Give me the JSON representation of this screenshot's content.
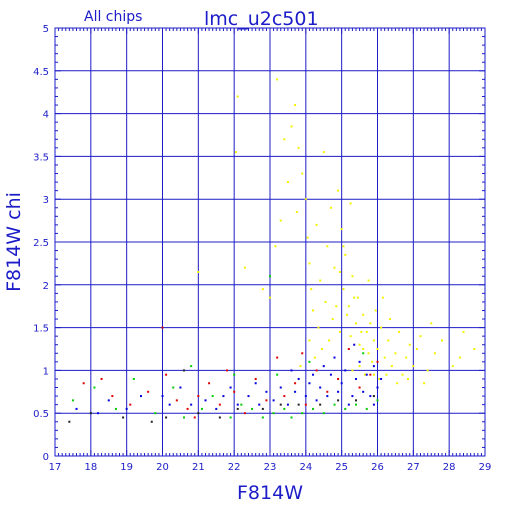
{
  "chart_data": {
    "type": "scatter",
    "title": "lmc_u2c501",
    "subtitle": "All chips",
    "xlabel": "F814W",
    "ylabel": "F814W chi",
    "xlim": [
      17,
      29
    ],
    "ylim": [
      0,
      5
    ],
    "grid": true,
    "x_ticks": [
      "17",
      "18",
      "19",
      "20",
      "21",
      "22",
      "23",
      "24",
      "25",
      "26",
      "27",
      "28",
      "29"
    ],
    "y_ticks": [
      "0",
      "0.5",
      "1",
      "1.5",
      "2",
      "2.5",
      "3",
      "3.5",
      "4",
      "4.5",
      "5"
    ],
    "colors": {
      "axis": "#1c1cc8",
      "grid": "#1c1cc8",
      "yellow": "#f2f200",
      "red": "#e00000",
      "green": "#00d000",
      "blue": "#0000e0",
      "black": "#202020"
    },
    "series": [
      {
        "color": "yellow",
        "points": [
          [
            21.0,
            2.15
          ],
          [
            22.05,
            3.55
          ],
          [
            22.1,
            4.2
          ],
          [
            22.3,
            2.2
          ],
          [
            23.0,
            1.85
          ],
          [
            23.2,
            4.4
          ],
          [
            23.4,
            3.7
          ],
          [
            23.5,
            3.2
          ],
          [
            23.6,
            3.85
          ],
          [
            23.7,
            4.1
          ],
          [
            23.75,
            2.85
          ],
          [
            23.8,
            3.6
          ],
          [
            23.9,
            3.3
          ],
          [
            24.0,
            3.0
          ],
          [
            24.05,
            2.55
          ],
          [
            24.1,
            2.25
          ],
          [
            24.15,
            1.95
          ],
          [
            24.2,
            1.7
          ],
          [
            24.3,
            2.7
          ],
          [
            24.35,
            1.5
          ],
          [
            24.4,
            2.05
          ],
          [
            24.5,
            3.55
          ],
          [
            24.55,
            1.8
          ],
          [
            24.6,
            2.45
          ],
          [
            24.7,
            2.9
          ],
          [
            24.75,
            1.6
          ],
          [
            24.8,
            2.2
          ],
          [
            24.9,
            3.1
          ],
          [
            24.95,
            1.45
          ],
          [
            25.0,
            2.65
          ],
          [
            25.05,
            1.95
          ],
          [
            25.1,
            2.35
          ],
          [
            25.2,
            1.75
          ],
          [
            25.25,
            1.4
          ],
          [
            25.3,
            2.1
          ],
          [
            25.4,
            1.55
          ],
          [
            25.45,
            1.85
          ],
          [
            25.5,
            1.3
          ],
          [
            25.6,
            1.65
          ],
          [
            25.7,
            1.45
          ],
          [
            25.75,
            1.2
          ],
          [
            25.8,
            1.55
          ],
          [
            25.9,
            1.35
          ],
          [
            26.0,
            1.25
          ],
          [
            26.1,
            1.5
          ],
          [
            26.2,
            1.15
          ],
          [
            26.3,
            1.35
          ],
          [
            26.4,
            1.05
          ],
          [
            26.5,
            1.2
          ],
          [
            26.6,
            1.45
          ],
          [
            26.7,
            0.95
          ],
          [
            26.8,
            1.15
          ],
          [
            26.9,
            1.3
          ],
          [
            27.0,
            1.05
          ],
          [
            27.1,
            1.25
          ],
          [
            27.2,
            1.4
          ],
          [
            27.4,
            1.0
          ],
          [
            27.6,
            1.2
          ],
          [
            27.8,
            1.35
          ],
          [
            28.1,
            1.05
          ],
          [
            28.4,
            1.45
          ],
          [
            28.7,
            1.25
          ],
          [
            25.3,
            1.0
          ],
          [
            25.5,
            1.05
          ],
          [
            25.65,
            0.95
          ],
          [
            25.85,
            1.1
          ],
          [
            26.05,
            0.9
          ],
          [
            26.25,
            0.95
          ],
          [
            25.15,
            1.65
          ],
          [
            24.85,
            1.75
          ],
          [
            24.65,
            1.35
          ],
          [
            25.35,
            1.85
          ],
          [
            25.55,
            1.45
          ],
          [
            25.95,
            1.7
          ],
          [
            26.15,
            1.85
          ],
          [
            24.45,
            1.25
          ],
          [
            24.25,
            1.15
          ],
          [
            23.85,
            1.05
          ],
          [
            25.75,
            2.05
          ],
          [
            25.05,
            2.45
          ],
          [
            24.95,
            2.15
          ],
          [
            25.25,
            2.95
          ],
          [
            26.35,
            1.6
          ],
          [
            26.55,
            0.85
          ],
          [
            26.85,
            0.9
          ],
          [
            27.3,
            0.85
          ],
          [
            27.5,
            1.55
          ],
          [
            28.3,
            1.15
          ],
          [
            23.3,
            2.75
          ],
          [
            22.8,
            1.95
          ],
          [
            23.15,
            2.45
          ],
          [
            24.1,
            1.35
          ],
          [
            25.6,
            1.25
          ],
          [
            25.9,
            0.95
          ]
        ]
      },
      {
        "color": "red",
        "points": [
          [
            17.8,
            0.85
          ],
          [
            18.3,
            0.9
          ],
          [
            18.6,
            0.7
          ],
          [
            19.1,
            0.6
          ],
          [
            19.6,
            0.75
          ],
          [
            20.0,
            1.5
          ],
          [
            20.1,
            0.95
          ],
          [
            20.4,
            0.65
          ],
          [
            20.7,
            0.55
          ],
          [
            21.0,
            0.7
          ],
          [
            21.3,
            0.85
          ],
          [
            21.6,
            0.6
          ],
          [
            22.0,
            0.75
          ],
          [
            22.3,
            0.5
          ],
          [
            22.6,
            0.9
          ],
          [
            22.9,
            0.65
          ],
          [
            23.2,
            1.15
          ],
          [
            23.4,
            0.7
          ],
          [
            23.7,
            0.85
          ],
          [
            24.0,
            0.6
          ],
          [
            24.3,
            1.0
          ],
          [
            24.6,
            0.75
          ],
          [
            24.9,
            0.9
          ],
          [
            25.2,
            1.25
          ],
          [
            25.5,
            0.8
          ],
          [
            25.8,
            0.95
          ],
          [
            26.0,
            1.1
          ],
          [
            21.8,
            1.0
          ],
          [
            20.9,
            0.45
          ],
          [
            23.9,
            1.2
          ]
        ]
      },
      {
        "color": "green",
        "points": [
          [
            17.5,
            0.65
          ],
          [
            18.1,
            0.8
          ],
          [
            18.7,
            0.55
          ],
          [
            19.2,
            0.9
          ],
          [
            19.8,
            0.5
          ],
          [
            20.3,
            0.8
          ],
          [
            20.6,
            0.45
          ],
          [
            21.1,
            0.55
          ],
          [
            21.4,
            0.7
          ],
          [
            21.9,
            0.45
          ],
          [
            22.2,
            0.6
          ],
          [
            22.5,
            0.55
          ],
          [
            22.8,
            0.45
          ],
          [
            23.0,
            2.1
          ],
          [
            23.1,
            0.5
          ],
          [
            23.4,
            0.55
          ],
          [
            23.6,
            0.45
          ],
          [
            23.9,
            0.5
          ],
          [
            24.2,
            0.55
          ],
          [
            24.5,
            0.5
          ],
          [
            24.8,
            0.6
          ],
          [
            25.1,
            0.55
          ],
          [
            25.4,
            0.6
          ],
          [
            25.7,
            0.55
          ],
          [
            26.0,
            0.65
          ],
          [
            24.1,
            1.1
          ],
          [
            23.2,
            0.95
          ],
          [
            22.0,
            0.95
          ],
          [
            20.8,
            1.05
          ],
          [
            25.6,
            1.2
          ]
        ]
      },
      {
        "color": "blue",
        "points": [
          [
            17.6,
            0.55
          ],
          [
            18.5,
            0.65
          ],
          [
            19.4,
            0.7
          ],
          [
            20.2,
            0.6
          ],
          [
            20.5,
            0.8
          ],
          [
            20.8,
            0.6
          ],
          [
            21.2,
            0.65
          ],
          [
            21.5,
            0.55
          ],
          [
            21.7,
            0.7
          ],
          [
            22.1,
            0.6
          ],
          [
            22.4,
            0.7
          ],
          [
            22.7,
            0.6
          ],
          [
            22.9,
            0.75
          ],
          [
            23.1,
            0.65
          ],
          [
            23.3,
            0.8
          ],
          [
            23.5,
            0.6
          ],
          [
            23.7,
            0.75
          ],
          [
            23.8,
            0.9
          ],
          [
            24.0,
            0.7
          ],
          [
            24.1,
            0.85
          ],
          [
            24.3,
            0.65
          ],
          [
            24.4,
            0.8
          ],
          [
            24.6,
            0.7
          ],
          [
            24.7,
            0.95
          ],
          [
            24.9,
            0.75
          ],
          [
            25.0,
            0.85
          ],
          [
            25.1,
            1.0
          ],
          [
            25.3,
            0.7
          ],
          [
            25.4,
            0.9
          ],
          [
            25.5,
            1.1
          ],
          [
            25.6,
            0.75
          ],
          [
            25.7,
            0.95
          ],
          [
            25.8,
            0.7
          ],
          [
            25.9,
            1.05
          ],
          [
            26.0,
            0.8
          ],
          [
            26.1,
            0.9
          ],
          [
            24.5,
            1.05
          ],
          [
            24.2,
            0.95
          ],
          [
            23.6,
            1.0
          ],
          [
            22.6,
            0.85
          ],
          [
            25.2,
            0.6
          ],
          [
            25.9,
            0.6
          ],
          [
            24.8,
            1.15
          ],
          [
            25.35,
            1.3
          ],
          [
            21.9,
            0.8
          ],
          [
            20.0,
            0.7
          ],
          [
            19.0,
            0.55
          ],
          [
            18.2,
            0.5
          ]
        ]
      },
      {
        "color": "black",
        "points": [
          [
            17.4,
            0.4
          ],
          [
            18.0,
            0.5
          ],
          [
            18.9,
            0.45
          ],
          [
            19.7,
            0.4
          ],
          [
            20.1,
            0.45
          ],
          [
            20.6,
            1.0
          ],
          [
            21.0,
            0.5
          ],
          [
            21.6,
            0.45
          ],
          [
            22.1,
            0.55
          ],
          [
            22.8,
            0.55
          ],
          [
            23.3,
            0.6
          ],
          [
            23.8,
            0.6
          ],
          [
            24.4,
            0.6
          ],
          [
            24.9,
            0.65
          ],
          [
            25.4,
            0.65
          ],
          [
            25.9,
            0.7
          ]
        ]
      }
    ]
  }
}
